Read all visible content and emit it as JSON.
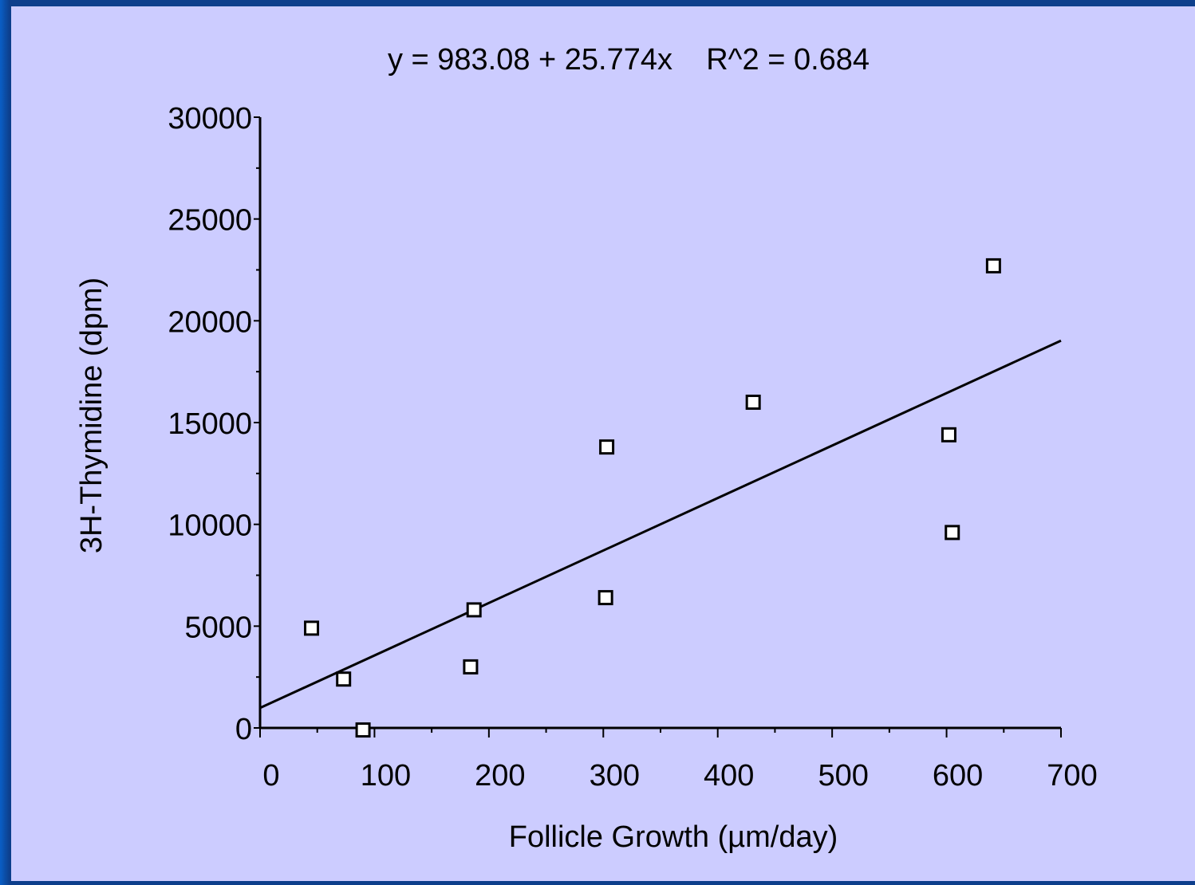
{
  "colors": {
    "background": "#ccccff",
    "frame_border": "#0d3f8c",
    "axis": "#000000",
    "marker_fill": "#ffffff"
  },
  "chart_data": {
    "type": "scatter",
    "title": "y = 983.08 + 25.774x    R^2 = 0.684",
    "xlabel": "Follicle Growth (µm/day)",
    "ylabel": "3H-Thymidine (dpm)",
    "xlim": [
      0,
      700
    ],
    "ylim": [
      0,
      30000
    ],
    "x_ticks": [
      0,
      100,
      200,
      300,
      400,
      500,
      600,
      700
    ],
    "y_ticks": [
      0,
      5000,
      10000,
      15000,
      20000,
      25000,
      30000
    ],
    "grid": false,
    "marker": "open-square",
    "points": [
      {
        "x": 45,
        "y": 4900
      },
      {
        "x": 73,
        "y": 2400
      },
      {
        "x": 90,
        "y": -100
      },
      {
        "x": 184,
        "y": 3000
      },
      {
        "x": 187,
        "y": 5800
      },
      {
        "x": 302,
        "y": 6400
      },
      {
        "x": 303,
        "y": 13800
      },
      {
        "x": 431,
        "y": 16000
      },
      {
        "x": 602,
        "y": 14400
      },
      {
        "x": 605,
        "y": 9600
      },
      {
        "x": 641,
        "y": 22700
      }
    ],
    "fit_line": {
      "intercept": 983.08,
      "slope": 25.774
    }
  }
}
